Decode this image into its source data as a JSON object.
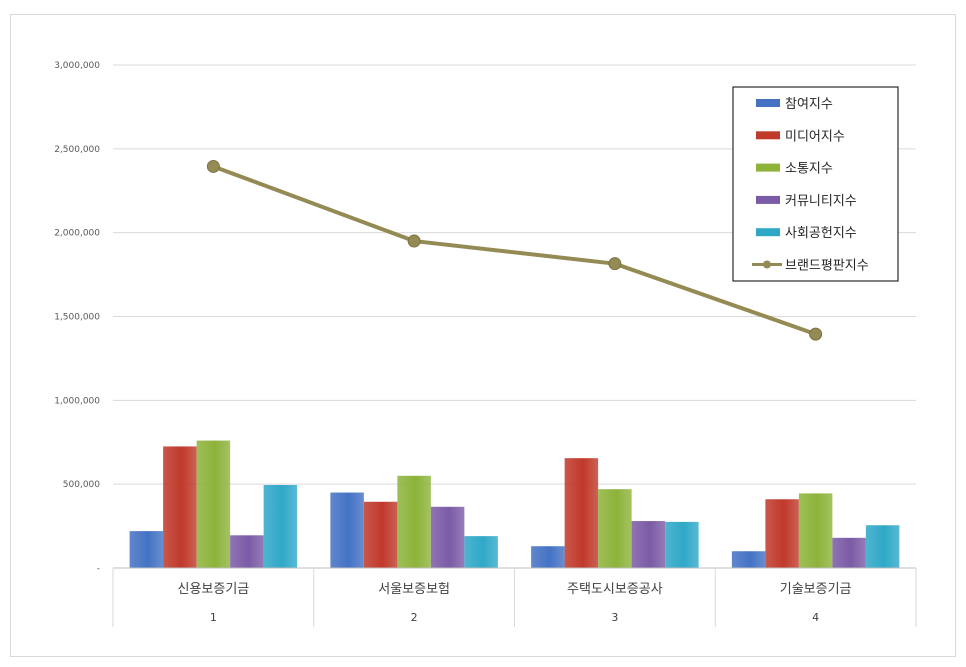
{
  "chart_data": {
    "type": "bar",
    "title": "",
    "xlabel": "",
    "ylabel": "",
    "ylim": [
      0,
      3000000
    ],
    "yticks": [
      0,
      500000,
      1000000,
      1500000,
      2000000,
      2500000,
      3000000
    ],
    "ytick_labels": [
      "-",
      "500,000",
      "1,000,000",
      "1,500,000",
      "2,000,000",
      "2,500,000",
      "3,000,000"
    ],
    "categories": [
      "신용보증기금",
      "서울보증보험",
      "주택도시보증공사",
      "기술보증기금"
    ],
    "category_numbers": [
      "1",
      "2",
      "3",
      "4"
    ],
    "grid": true,
    "legend_position": "top-right",
    "series": [
      {
        "name": "참여지수",
        "kind": "bar",
        "color": "#4472C4",
        "values": [
          220000,
          450000,
          130000,
          100000
        ]
      },
      {
        "name": "미디어지수",
        "kind": "bar",
        "color": "#C0392B",
        "values": [
          725000,
          395000,
          655000,
          410000
        ]
      },
      {
        "name": "소통지수",
        "kind": "bar",
        "color": "#8DB33A",
        "values": [
          760000,
          550000,
          470000,
          445000
        ]
      },
      {
        "name": "커뮤니티지수",
        "kind": "bar",
        "color": "#7B5BA6",
        "values": [
          195000,
          365000,
          280000,
          180000
        ]
      },
      {
        "name": "사회공헌지수",
        "kind": "bar",
        "color": "#2FA8C8",
        "values": [
          495000,
          190000,
          275000,
          255000
        ]
      },
      {
        "name": "브랜드평판지수",
        "kind": "line",
        "color": "#948A54",
        "values": [
          2395000,
          1950000,
          1815000,
          1395000
        ]
      }
    ]
  }
}
